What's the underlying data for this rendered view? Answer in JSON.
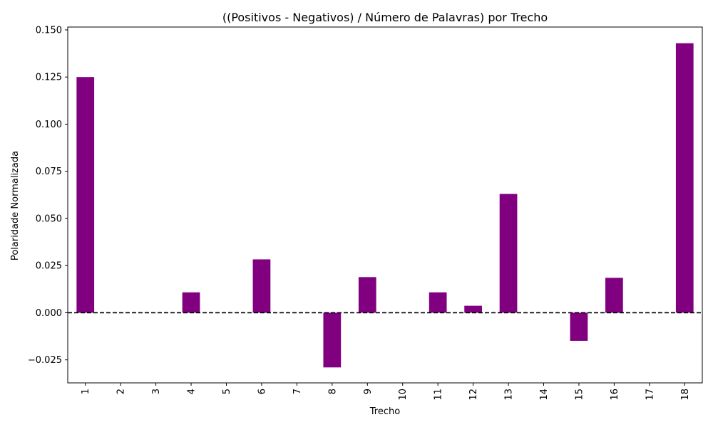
{
  "chart_data": {
    "type": "bar",
    "title": "((Positivos - Negativos) / Número de Palavras) por Trecho",
    "xlabel": "Trecho",
    "ylabel": "Polaridade Normalizada",
    "categories": [
      "1",
      "2",
      "3",
      "4",
      "5",
      "6",
      "7",
      "8",
      "9",
      "10",
      "11",
      "12",
      "13",
      "14",
      "15",
      "16",
      "17",
      "18"
    ],
    "values": [
      0.125,
      0,
      0,
      0.0108,
      0,
      0.0283,
      0,
      -0.029,
      0.0189,
      0,
      0.0108,
      0.0037,
      0.063,
      0,
      -0.0149,
      0.0185,
      0,
      0.1429
    ],
    "ylim": [
      -0.0372,
      0.1515
    ],
    "yticks": [
      -0.025,
      0.0,
      0.025,
      0.05,
      0.075,
      0.1,
      0.125,
      0.15
    ],
    "ytick_labels": [
      "−0.025",
      "0.000",
      "0.025",
      "0.050",
      "0.075",
      "0.100",
      "0.125",
      "0.150"
    ],
    "bar_color": "#800080",
    "reference_line": {
      "y": 0,
      "style": "dashed",
      "color": "#000000"
    },
    "grid": false,
    "legend": "none"
  }
}
